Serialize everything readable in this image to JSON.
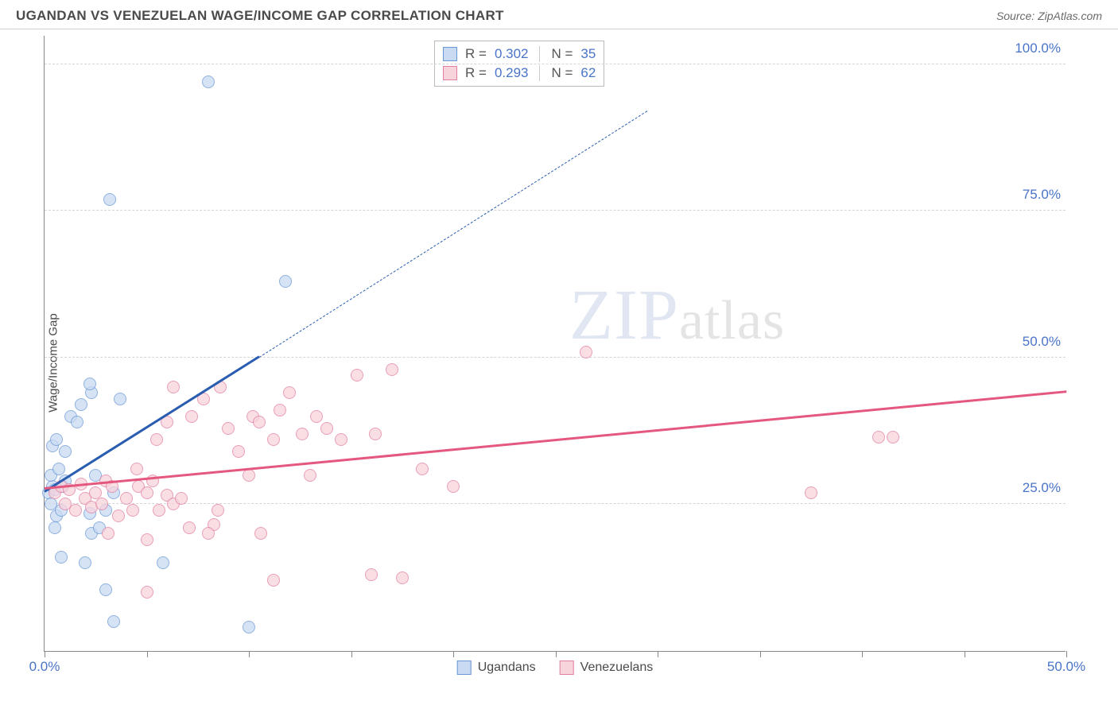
{
  "header": {
    "title": "UGANDAN VS VENEZUELAN WAGE/INCOME GAP CORRELATION CHART",
    "source": "Source: ZipAtlas.com"
  },
  "chart": {
    "type": "scatter",
    "y_axis_label": "Wage/Income Gap",
    "watermark": "ZIPatlas",
    "background_color": "#ffffff",
    "grid_color": "#d5d5d5",
    "axis_color": "#888888",
    "tick_label_color": "#4a74c9",
    "xlim": [
      0,
      50
    ],
    "ylim": [
      0,
      105
    ],
    "x_ticks": [
      0,
      5,
      10,
      15,
      20,
      25,
      30,
      35,
      40,
      45,
      50
    ],
    "x_tick_labels": {
      "0": "0.0%",
      "50": "50.0%"
    },
    "y_ticks": [
      25,
      50,
      75,
      100
    ],
    "y_tick_labels": {
      "25": "25.0%",
      "50": "50.0%",
      "75": "75.0%",
      "100": "100.0%"
    },
    "marker_radius": 8,
    "marker_stroke_width": 1.5,
    "series": [
      {
        "name": "Ugandans",
        "color_fill": "#c9daf2",
        "color_stroke": "#6a97d6",
        "color_line": "#2a5db0",
        "r_value": "0.302",
        "n_value": "35",
        "trend": {
          "x1": 0,
          "y1": 27,
          "x2": 10.5,
          "y2": 50,
          "dashed_to_x": 29.5,
          "dashed_to_y": 92
        },
        "points": [
          [
            0.2,
            27
          ],
          [
            0.3,
            25
          ],
          [
            0.4,
            28
          ],
          [
            0.5,
            27.5
          ],
          [
            0.6,
            23
          ],
          [
            0.8,
            24
          ],
          [
            0.9,
            28
          ],
          [
            0.4,
            35
          ],
          [
            0.6,
            36
          ],
          [
            1.0,
            34
          ],
          [
            1.3,
            40
          ],
          [
            1.6,
            39
          ],
          [
            1.8,
            42
          ],
          [
            2.3,
            44
          ],
          [
            2.5,
            30
          ],
          [
            2.3,
            20
          ],
          [
            2.7,
            21
          ],
          [
            2.2,
            23.5
          ],
          [
            3.4,
            27
          ],
          [
            3.0,
            24
          ],
          [
            1.0,
            29
          ],
          [
            2.2,
            45.5
          ],
          [
            3.7,
            43
          ],
          [
            5.8,
            15
          ],
          [
            2.0,
            15
          ],
          [
            0.5,
            21
          ],
          [
            0.8,
            16
          ],
          [
            3.0,
            10.5
          ],
          [
            3.4,
            5
          ],
          [
            10.0,
            4
          ],
          [
            3.2,
            77
          ],
          [
            8.0,
            97
          ],
          [
            11.8,
            63
          ],
          [
            0.3,
            30
          ],
          [
            0.7,
            31
          ]
        ]
      },
      {
        "name": "Venezuelans",
        "color_fill": "#f7d3dc",
        "color_stroke": "#e37fa0",
        "color_line": "#e4577f",
        "r_value": "0.293",
        "n_value": "62",
        "trend": {
          "x1": 0,
          "y1": 27.5,
          "x2": 50,
          "y2": 44
        },
        "points": [
          [
            0.5,
            27
          ],
          [
            0.8,
            28
          ],
          [
            1.0,
            25
          ],
          [
            1.2,
            27.5
          ],
          [
            1.5,
            24
          ],
          [
            1.8,
            28.5
          ],
          [
            2.0,
            26
          ],
          [
            2.3,
            24.5
          ],
          [
            2.5,
            27
          ],
          [
            2.8,
            25
          ],
          [
            3.0,
            29
          ],
          [
            3.3,
            28
          ],
          [
            3.6,
            23
          ],
          [
            4.0,
            26
          ],
          [
            4.3,
            24
          ],
          [
            4.6,
            28
          ],
          [
            5.0,
            27
          ],
          [
            5.3,
            29
          ],
          [
            5.6,
            24
          ],
          [
            6.0,
            26.5
          ],
          [
            6.3,
            25
          ],
          [
            6.7,
            26
          ],
          [
            7.1,
            21
          ],
          [
            3.1,
            20
          ],
          [
            5.0,
            19
          ],
          [
            8.3,
            21.5
          ],
          [
            8.0,
            20
          ],
          [
            8.5,
            24
          ],
          [
            4.5,
            31
          ],
          [
            5.5,
            36
          ],
          [
            6.0,
            39
          ],
          [
            6.3,
            45
          ],
          [
            7.2,
            40
          ],
          [
            7.8,
            43
          ],
          [
            8.6,
            45
          ],
          [
            9.0,
            38
          ],
          [
            9.5,
            34
          ],
          [
            10.0,
            30
          ],
          [
            10.2,
            40
          ],
          [
            10.5,
            39
          ],
          [
            10.6,
            20
          ],
          [
            11.2,
            36
          ],
          [
            11.2,
            12
          ],
          [
            11.5,
            41
          ],
          [
            12.0,
            44
          ],
          [
            12.6,
            37
          ],
          [
            13.0,
            30
          ],
          [
            13.3,
            40
          ],
          [
            13.8,
            38
          ],
          [
            14.5,
            36
          ],
          [
            15.3,
            47
          ],
          [
            16.2,
            37
          ],
          [
            16.0,
            13
          ],
          [
            17.0,
            48
          ],
          [
            17.5,
            12.5
          ],
          [
            18.5,
            31
          ],
          [
            20.0,
            28
          ],
          [
            26.5,
            51
          ],
          [
            37.5,
            27
          ],
          [
            40.8,
            36.5
          ],
          [
            41.5,
            36.5
          ],
          [
            5.0,
            10
          ]
        ]
      }
    ],
    "legend_bottom": [
      {
        "label": "Ugandans",
        "fill": "#c9daf2",
        "stroke": "#6a97d6"
      },
      {
        "label": "Venezuelans",
        "fill": "#f7d3dc",
        "stroke": "#e37fa0"
      }
    ]
  }
}
